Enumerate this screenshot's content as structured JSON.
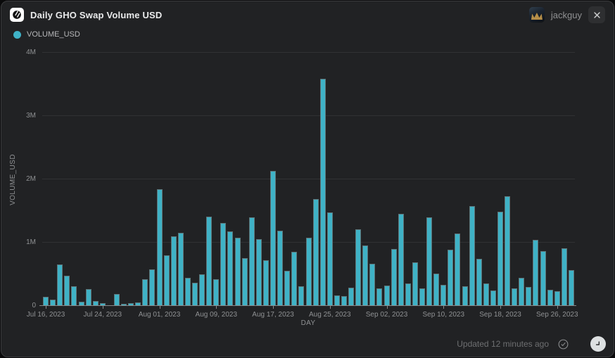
{
  "window": {
    "title": "Daily GHO Swap Volume USD",
    "user_name": "jackguy"
  },
  "icons": {
    "logo": "flipside-disc-icon",
    "close": "x-icon",
    "updated": "circled-check-icon",
    "runtime": "clock-icon"
  },
  "legend": {
    "items": [
      {
        "label": "VOLUME_USD",
        "color": "#3fb2c6"
      }
    ]
  },
  "footer": {
    "updated_text": "Updated 12 minutes ago"
  },
  "chart_data": {
    "type": "bar",
    "title": "Daily GHO Swap Volume USD",
    "xlabel": "DAY",
    "ylabel": "VOLUME_USD",
    "series_name": "VOLUME_USD",
    "bar_color": "#3fb2c6",
    "background_color": "#212224",
    "grid": true,
    "ylim": [
      0,
      4000000
    ],
    "ytick_labels": [
      "0",
      "1M",
      "2M",
      "3M",
      "4M"
    ],
    "xtick_labels": [
      "Jul 16, 2023",
      "Jul 24, 2023",
      "Aug 01, 2023",
      "Aug 09, 2023",
      "Aug 17, 2023",
      "Aug 25, 2023",
      "Sep 02, 2023",
      "Sep 10, 2023",
      "Sep 18, 2023",
      "Sep 26, 2023"
    ],
    "xtick_every": 8,
    "dates": [
      "2023-07-16",
      "2023-07-17",
      "2023-07-18",
      "2023-07-19",
      "2023-07-20",
      "2023-07-21",
      "2023-07-22",
      "2023-07-23",
      "2023-07-24",
      "2023-07-25",
      "2023-07-26",
      "2023-07-27",
      "2023-07-28",
      "2023-07-29",
      "2023-07-30",
      "2023-07-31",
      "2023-08-01",
      "2023-08-02",
      "2023-08-03",
      "2023-08-04",
      "2023-08-05",
      "2023-08-06",
      "2023-08-07",
      "2023-08-08",
      "2023-08-09",
      "2023-08-10",
      "2023-08-11",
      "2023-08-12",
      "2023-08-13",
      "2023-08-14",
      "2023-08-15",
      "2023-08-16",
      "2023-08-17",
      "2023-08-18",
      "2023-08-19",
      "2023-08-20",
      "2023-08-21",
      "2023-08-22",
      "2023-08-23",
      "2023-08-24",
      "2023-08-25",
      "2023-08-26",
      "2023-08-27",
      "2023-08-28",
      "2023-08-29",
      "2023-08-30",
      "2023-08-31",
      "2023-09-01",
      "2023-09-02",
      "2023-09-03",
      "2023-09-04",
      "2023-09-05",
      "2023-09-06",
      "2023-09-07",
      "2023-09-08",
      "2023-09-09",
      "2023-09-10",
      "2023-09-11",
      "2023-09-12",
      "2023-09-13",
      "2023-09-14",
      "2023-09-15",
      "2023-09-16",
      "2023-09-17",
      "2023-09-18",
      "2023-09-19",
      "2023-09-20",
      "2023-09-21",
      "2023-09-22",
      "2023-09-23",
      "2023-09-24",
      "2023-09-25",
      "2023-09-26",
      "2023-09-27",
      "2023-09-28"
    ],
    "values": [
      150000,
      95000,
      660000,
      480000,
      310000,
      70000,
      265000,
      80000,
      42000,
      0,
      190000,
      28000,
      42000,
      60000,
      420000,
      575000,
      1850000,
      800000,
      1100000,
      1160000,
      440000,
      370000,
      500000,
      1410000,
      420000,
      1310000,
      1180000,
      1080000,
      755000,
      1400000,
      1060000,
      725000,
      2130000,
      1190000,
      560000,
      855000,
      310000,
      1080000,
      1690000,
      3590000,
      1480000,
      170000,
      155000,
      290000,
      1210000,
      960000,
      670000,
      280000,
      320000,
      900000,
      1460000,
      360000,
      690000,
      280000,
      1400000,
      515000,
      335000,
      890000,
      1140000,
      310000,
      1580000,
      745000,
      355000,
      245000,
      1490000,
      1730000,
      280000,
      440000,
      300000,
      1040000,
      870000,
      255000,
      235000,
      910000,
      570000
    ]
  }
}
